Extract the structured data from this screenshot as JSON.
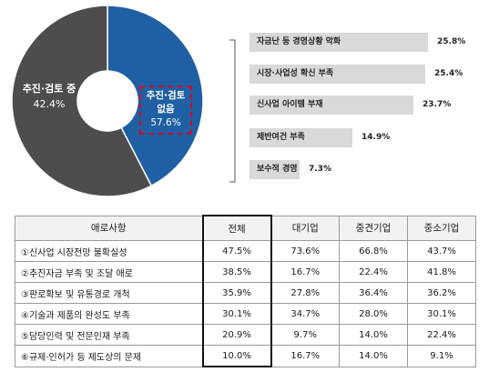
{
  "chart_data": [
    {
      "type": "pie",
      "variant": "donut",
      "slices": [
        {
          "label": "추진·검토 중",
          "value": 42.4,
          "value_label": "42.4%",
          "color": "#1f5fa3"
        },
        {
          "label": "추진·검토 없음",
          "label_lines": [
            "추진·검토",
            "없음"
          ],
          "value": 57.6,
          "value_label": "57.6%",
          "color": "#4d4d4d",
          "highlighted": true
        }
      ]
    },
    {
      "type": "bar",
      "orientation": "horizontal",
      "categories": [
        "자금난 등 경영상황 악화",
        "시장·사업성 확신 부족",
        "신사업 아이템 부재",
        "제반여건 부족",
        "보수적 경영"
      ],
      "values": [
        25.8,
        25.4,
        23.7,
        14.9,
        7.3
      ],
      "value_labels": [
        "25.8%",
        "25.4%",
        "23.7%",
        "14.9%",
        "7.3%"
      ],
      "color": "#d9d9d9"
    },
    {
      "type": "table",
      "columns": [
        "애로사항",
        "전체",
        "대기업",
        "중견기업",
        "중소기업"
      ],
      "rows": [
        [
          "①신사업 시장전망 불확실성",
          "47.5%",
          "73.6%",
          "66.8%",
          "43.7%"
        ],
        [
          "②추진자금 부족 및 조달 애로",
          "38.5%",
          "16.7%",
          "22.4%",
          "41.8%"
        ],
        [
          "③판로확보 및 유통경로 개척",
          "35.9%",
          "27.8%",
          "36.4%",
          "36.2%"
        ],
        [
          "④기술과 제품의 완성도 부족",
          "30.1%",
          "34.7%",
          "28.0%",
          "30.1%"
        ],
        [
          "⑤담당인력 및 전문인재 부족",
          "20.9%",
          "9.7%",
          "14.0%",
          "22.4%"
        ],
        [
          "⑥규제·인허가 등 제도상의 문제",
          "10.0%",
          "16.7%",
          "14.0%",
          "9.1%"
        ]
      ],
      "highlighted_column": "전체"
    }
  ]
}
